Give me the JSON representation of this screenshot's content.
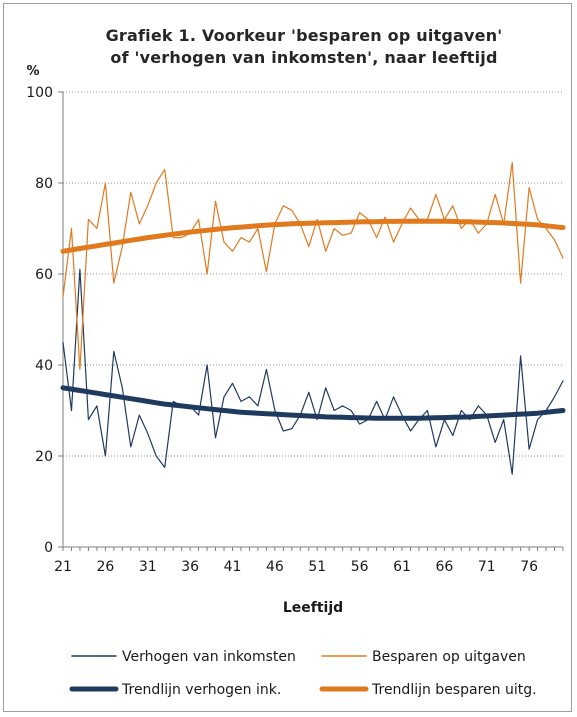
{
  "chart_data": {
    "type": "line",
    "title_line1": "Grafiek 1. Voorkeur 'besparen op uitgaven'",
    "title_line2": "of 'verhogen van inkomsten', naar leeftijd",
    "unit_label": "%",
    "xlabel": "Leeftijd",
    "ylabel": "",
    "ylim": [
      0,
      100
    ],
    "yticks": [
      0,
      20,
      40,
      60,
      80,
      100
    ],
    "xlim": [
      21,
      80
    ],
    "xticks": [
      21,
      26,
      31,
      36,
      41,
      46,
      51,
      56,
      61,
      66,
      71,
      76
    ],
    "grid": "horizontal dotted",
    "legend_placement": "bottom",
    "x": [
      21,
      22,
      23,
      24,
      25,
      26,
      27,
      28,
      29,
      30,
      31,
      32,
      33,
      34,
      35,
      36,
      37,
      38,
      39,
      40,
      41,
      42,
      43,
      44,
      45,
      46,
      47,
      48,
      49,
      50,
      51,
      52,
      53,
      54,
      55,
      56,
      57,
      58,
      59,
      60,
      61,
      62,
      63,
      64,
      65,
      66,
      67,
      68,
      69,
      70,
      71,
      72,
      73,
      74,
      75,
      76,
      77,
      78,
      79,
      80
    ],
    "series": [
      {
        "name": "Verhogen van inkomsten",
        "color": "#1f3a5f",
        "style": "thin",
        "values": [
          45,
          30,
          61,
          28,
          31,
          20,
          43,
          35,
          22,
          29,
          25,
          20,
          17.5,
          32,
          31,
          31,
          29,
          40,
          24,
          33,
          36,
          32,
          33,
          31,
          39,
          30,
          25.5,
          26,
          29,
          34,
          28,
          35,
          30,
          31,
          30,
          27,
          28,
          32,
          28,
          33,
          29,
          25.5,
          28,
          30,
          22,
          28,
          24.5,
          30,
          28,
          31,
          29,
          23,
          28,
          16,
          42,
          21.5,
          28,
          30,
          33,
          36.5
        ]
      },
      {
        "name": "Besparen op uitgaven",
        "color": "#e07a1f",
        "style": "thin",
        "values": [
          55,
          70,
          39,
          72,
          70,
          80,
          58,
          66,
          78,
          71,
          75,
          80,
          83,
          68,
          68,
          69,
          72,
          60,
          76,
          67,
          65,
          68,
          67,
          70,
          60.5,
          71,
          75,
          74,
          71,
          66,
          72,
          65,
          70,
          68.5,
          69,
          73.5,
          72,
          68,
          72.5,
          67,
          71,
          74.5,
          72,
          72,
          77.5,
          72,
          75,
          70,
          72,
          69,
          71,
          77.5,
          71,
          84.5,
          58,
          79,
          72,
          70,
          67.5,
          63.5
        ]
      },
      {
        "name": "Trendlijn verhogen ink.",
        "color": "#1f3a5f",
        "style": "thick",
        "values": [
          35,
          34.7,
          34.4,
          34.1,
          33.8,
          33.5,
          33.2,
          32.9,
          32.6,
          32.3,
          32,
          31.7,
          31.4,
          31.2,
          31,
          30.8,
          30.6,
          30.4,
          30.2,
          30,
          29.8,
          29.6,
          29.5,
          29.4,
          29.3,
          29.2,
          29.1,
          29,
          28.9,
          28.8,
          28.7,
          28.6,
          28.55,
          28.5,
          28.45,
          28.4,
          28.35,
          28.3,
          28.3,
          28.3,
          28.3,
          28.3,
          28.3,
          28.35,
          28.4,
          28.45,
          28.5,
          28.55,
          28.6,
          28.7,
          28.8,
          28.9,
          29,
          29.1,
          29.2,
          29.3,
          29.4,
          29.6,
          29.8,
          30
        ]
      },
      {
        "name": "Trendlijn besparen uitg.",
        "color": "#e07a1f",
        "style": "thick",
        "values": [
          65,
          65.3,
          65.6,
          65.9,
          66.2,
          66.5,
          66.8,
          67.1,
          67.4,
          67.7,
          68,
          68.25,
          68.5,
          68.75,
          69,
          69.2,
          69.4,
          69.6,
          69.8,
          70,
          70.15,
          70.3,
          70.45,
          70.6,
          70.75,
          70.85,
          70.95,
          71.05,
          71.1,
          71.15,
          71.2,
          71.25,
          71.3,
          71.35,
          71.4,
          71.45,
          71.5,
          71.5,
          71.55,
          71.55,
          71.6,
          71.6,
          71.6,
          71.6,
          71.6,
          71.6,
          71.55,
          71.5,
          71.45,
          71.4,
          71.35,
          71.3,
          71.2,
          71.1,
          71,
          70.9,
          70.8,
          70.6,
          70.4,
          70.2
        ]
      }
    ]
  },
  "legend": [
    {
      "label": "Verhogen van inkomsten",
      "color": "#1f3a5f",
      "style": "thin"
    },
    {
      "label": "Besparen op uitgaven",
      "color": "#e07a1f",
      "style": "thin"
    },
    {
      "label": "Trendlijn verhogen ink.",
      "color": "#1f3a5f",
      "style": "thick"
    },
    {
      "label": "Trendlijn besparen uitg.",
      "color": "#e07a1f",
      "style": "thick"
    }
  ]
}
